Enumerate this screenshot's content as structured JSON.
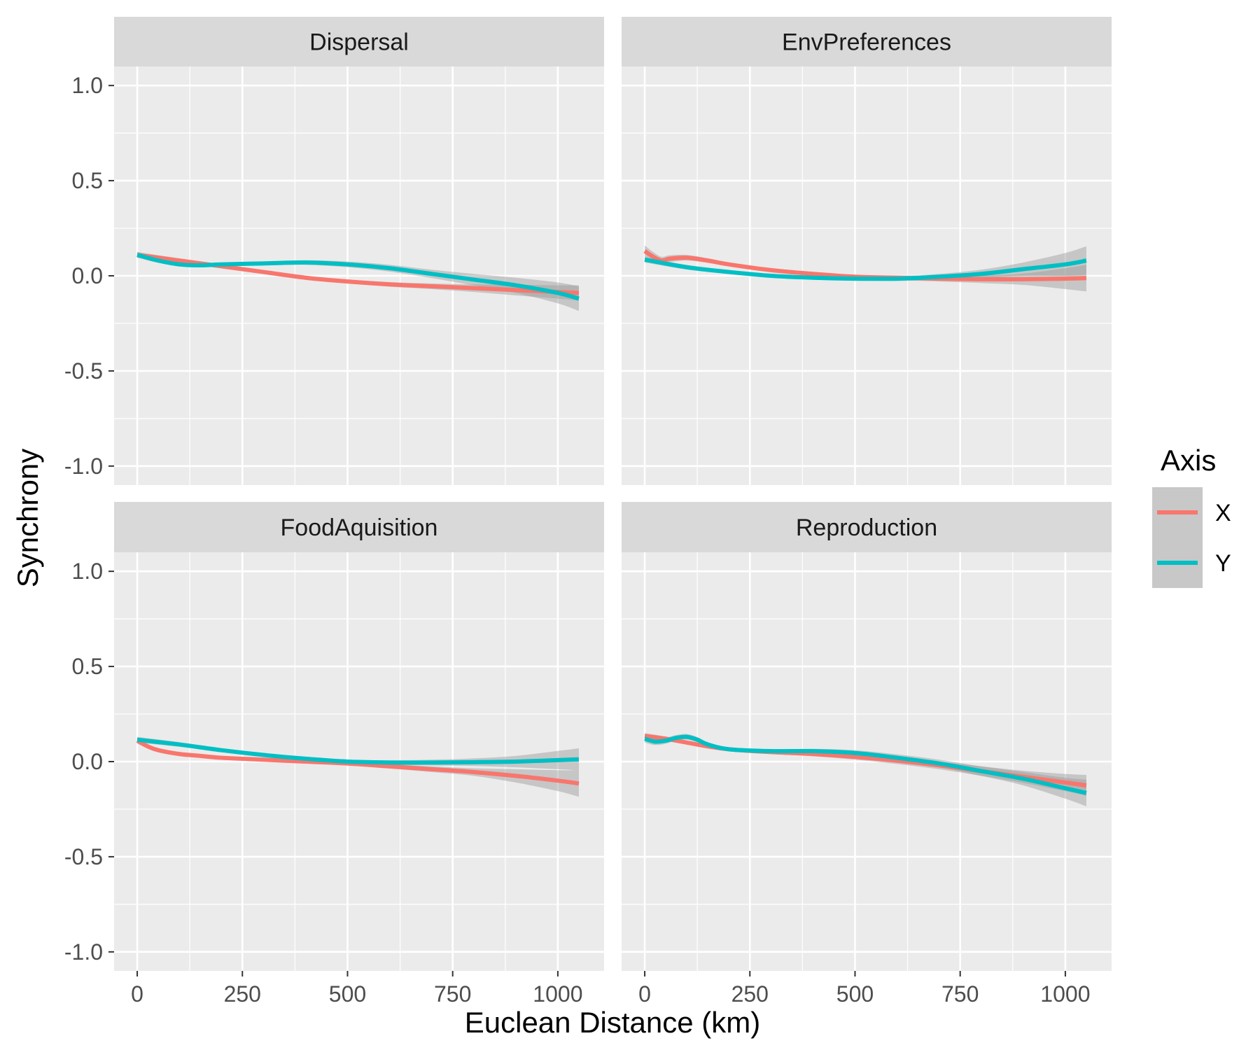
{
  "chart_data": {
    "type": "line",
    "xlabel": "Euclean Distance (km)",
    "ylabel": "Synchrony",
    "xlim": [
      -55,
      1110
    ],
    "ylim": [
      -1.1,
      1.1
    ],
    "x_ticks": [
      0,
      250,
      500,
      750,
      1000
    ],
    "x_tick_labels": [
      "0",
      "250",
      "500",
      "750",
      "1000"
    ],
    "y_ticks": [
      -1.0,
      -0.5,
      0.0,
      0.5,
      1.0
    ],
    "y_tick_labels": [
      "-1.0",
      "-0.5",
      "0.0",
      "0.5",
      "1.0"
    ],
    "grid": true,
    "legend": {
      "title": "Axis",
      "placement": "right",
      "entries": [
        {
          "label": "X",
          "color": "#F8766D"
        },
        {
          "label": "Y",
          "color": "#00BFC4"
        }
      ]
    },
    "panels": [
      {
        "title": "Dispersal",
        "series": [
          {
            "name": "X",
            "color": "#F8766D",
            "x": [
              0,
              100,
              200,
              300,
              400,
              500,
              600,
              700,
              800,
              900,
              1000,
              1050
            ],
            "y": [
              0.11,
              0.08,
              0.05,
              0.02,
              -0.01,
              -0.03,
              -0.045,
              -0.055,
              -0.065,
              -0.075,
              -0.085,
              -0.09
            ],
            "band": [
              0.015,
              0.012,
              0.01,
              0.01,
              0.01,
              0.01,
              0.012,
              0.015,
              0.02,
              0.028,
              0.035,
              0.04
            ]
          },
          {
            "name": "Y",
            "color": "#00BFC4",
            "x": [
              0,
              50,
              100,
              150,
              200,
              300,
              400,
              500,
              600,
              700,
              800,
              900,
              1000,
              1050
            ],
            "y": [
              0.11,
              0.08,
              0.06,
              0.055,
              0.06,
              0.065,
              0.07,
              0.06,
              0.04,
              0.01,
              -0.02,
              -0.05,
              -0.09,
              -0.12
            ],
            "band": [
              0.015,
              0.012,
              0.01,
              0.01,
              0.01,
              0.01,
              0.012,
              0.015,
              0.018,
              0.022,
              0.03,
              0.04,
              0.055,
              0.065
            ]
          }
        ]
      },
      {
        "title": "EnvPreferences",
        "series": [
          {
            "name": "X",
            "color": "#F8766D",
            "x": [
              0,
              20,
              40,
              60,
              100,
              150,
              200,
              300,
              400,
              500,
              600,
              700,
              800,
              900,
              1000,
              1050
            ],
            "y": [
              0.13,
              0.1,
              0.08,
              0.09,
              0.095,
              0.08,
              0.06,
              0.03,
              0.01,
              -0.005,
              -0.01,
              -0.015,
              -0.018,
              -0.018,
              -0.015,
              -0.012
            ],
            "band": [
              0.03,
              0.025,
              0.02,
              0.018,
              0.015,
              0.012,
              0.01,
              0.01,
              0.01,
              0.01,
              0.012,
              0.015,
              0.02,
              0.03,
              0.055,
              0.07
            ]
          },
          {
            "name": "Y",
            "color": "#00BFC4",
            "x": [
              0,
              100,
              200,
              300,
              400,
              500,
              600,
              700,
              800,
              900,
              1000,
              1050
            ],
            "y": [
              0.085,
              0.045,
              0.02,
              0.0,
              -0.01,
              -0.015,
              -0.015,
              -0.005,
              0.01,
              0.035,
              0.06,
              0.08
            ],
            "band": [
              0.015,
              0.012,
              0.01,
              0.01,
              0.01,
              0.01,
              0.012,
              0.015,
              0.022,
              0.035,
              0.06,
              0.075
            ]
          }
        ]
      },
      {
        "title": "FoodAquisition",
        "series": [
          {
            "name": "X",
            "color": "#F8766D",
            "x": [
              0,
              25,
              50,
              100,
              150,
              200,
              300,
              400,
              500,
              600,
              700,
              800,
              900,
              1000,
              1050
            ],
            "y": [
              0.11,
              0.08,
              0.06,
              0.04,
              0.03,
              0.02,
              0.01,
              0.0,
              -0.01,
              -0.025,
              -0.04,
              -0.055,
              -0.075,
              -0.1,
              -0.115
            ],
            "band": [
              0.015,
              0.012,
              0.01,
              0.01,
              0.01,
              0.01,
              0.01,
              0.01,
              0.01,
              0.012,
              0.015,
              0.02,
              0.035,
              0.055,
              0.07
            ]
          },
          {
            "name": "Y",
            "color": "#00BFC4",
            "x": [
              0,
              100,
              200,
              300,
              400,
              500,
              600,
              700,
              800,
              900,
              1000,
              1050
            ],
            "y": [
              0.115,
              0.09,
              0.06,
              0.035,
              0.015,
              0.0,
              -0.005,
              -0.005,
              -0.003,
              0.0,
              0.008,
              0.012
            ],
            "band": [
              0.015,
              0.012,
              0.01,
              0.01,
              0.01,
              0.01,
              0.012,
              0.015,
              0.02,
              0.03,
              0.048,
              0.058
            ]
          }
        ]
      },
      {
        "title": "Reproduction",
        "series": [
          {
            "name": "X",
            "color": "#F8766D",
            "x": [
              0,
              50,
              100,
              150,
              200,
              300,
              400,
              500,
              600,
              700,
              800,
              900,
              1000,
              1050
            ],
            "y": [
              0.135,
              0.12,
              0.1,
              0.08,
              0.065,
              0.05,
              0.04,
              0.025,
              0.005,
              -0.02,
              -0.05,
              -0.08,
              -0.11,
              -0.125
            ],
            "band": [
              0.015,
              0.012,
              0.01,
              0.01,
              0.01,
              0.01,
              0.012,
              0.015,
              0.018,
              0.02,
              0.025,
              0.032,
              0.045,
              0.055
            ]
          },
          {
            "name": "Y",
            "color": "#00BFC4",
            "x": [
              0,
              25,
              50,
              75,
              100,
              125,
              150,
              200,
              300,
              400,
              500,
              600,
              700,
              800,
              900,
              1000,
              1050
            ],
            "y": [
              0.12,
              0.105,
              0.11,
              0.125,
              0.13,
              0.115,
              0.09,
              0.065,
              0.055,
              0.055,
              0.045,
              0.02,
              -0.01,
              -0.05,
              -0.09,
              -0.14,
              -0.165
            ],
            "band": [
              0.02,
              0.018,
              0.016,
              0.015,
              0.015,
              0.014,
              0.012,
              0.01,
              0.01,
              0.012,
              0.015,
              0.018,
              0.02,
              0.025,
              0.035,
              0.055,
              0.07
            ]
          }
        ]
      }
    ]
  }
}
